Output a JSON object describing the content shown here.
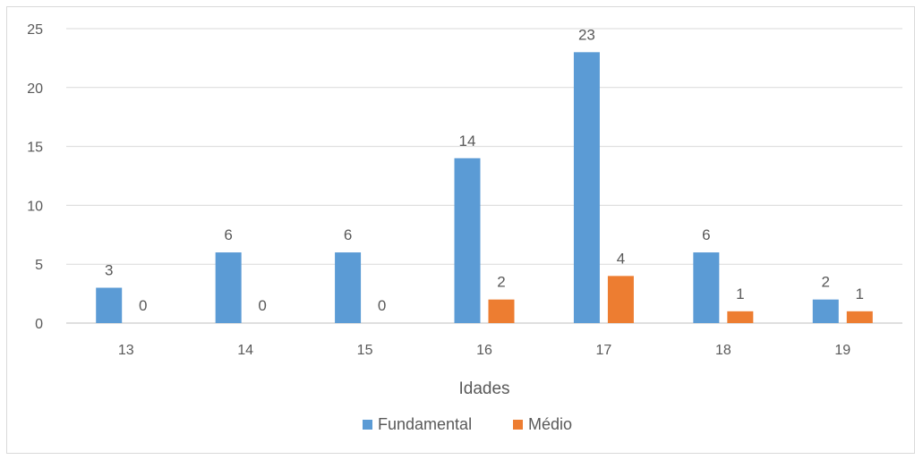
{
  "chart_data": {
    "type": "bar",
    "title": "",
    "xlabel": "Idades",
    "ylabel": "",
    "categories": [
      "13",
      "14",
      "15",
      "16",
      "17",
      "18",
      "19"
    ],
    "series": [
      {
        "name": "Fundamental",
        "color": "#5b9bd5",
        "values": [
          3,
          6,
          6,
          14,
          23,
          6,
          2
        ]
      },
      {
        "name": "Médio",
        "color": "#ed7d31",
        "values": [
          0,
          0,
          0,
          2,
          4,
          1,
          1
        ]
      }
    ],
    "ylim": [
      0,
      25
    ],
    "yticks": [
      "0",
      "5",
      "10",
      "15",
      "20",
      "25"
    ],
    "grid": true,
    "legend_position": "bottom"
  }
}
